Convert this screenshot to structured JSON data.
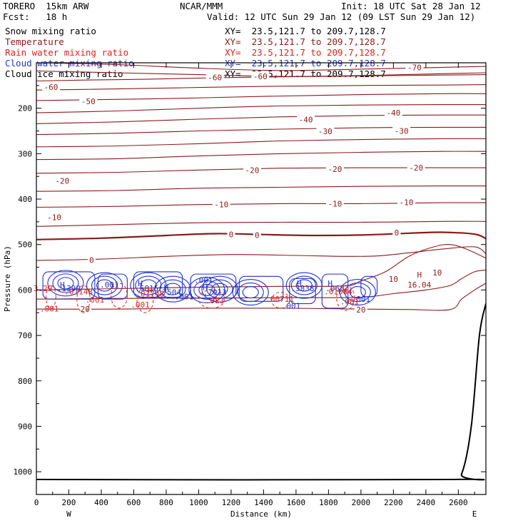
{
  "header": {
    "model": "TORERO  15km ARW",
    "center": "NCAR/MMM",
    "init": "Init: 18 UTC Sat 28 Jan 12",
    "fcst": "Fcst:   18 h",
    "valid": "Valid: 12 UTC Sun 29 Jan 12 (09 LST Sun 29 Jan 12)"
  },
  "fields": [
    {
      "name": "Snow mixing ratio",
      "xy": "XY=  23.5,121.7 to 209.7,128.7",
      "color": "#000000"
    },
    {
      "name": "Temperature",
      "xy": "XY=  23.5,121.7 to 209.7,128.7",
      "color": "#8b1a1a"
    },
    {
      "name": "Rain water mixing ratio",
      "xy": "XY=  23.5,121.7 to 209.7,128.7",
      "color": "#dd2222"
    },
    {
      "name": "Cloud water mixing ratio",
      "xy": "XY=  23.5,121.7 to 209.7,128.7",
      "color": "#2233cc"
    },
    {
      "name": "Cloud ice mixing ratio",
      "xy": "XY=  23.5,121.7 to 209.7,128.7",
      "color": "#000000"
    }
  ],
  "chart_data": {
    "type": "line",
    "xlabel": "Distance (km)",
    "ylabel": "Pressure (hPa)",
    "xlim": [
      0,
      2770
    ],
    "ylim": [
      1050,
      100
    ],
    "xticks": [
      0,
      200,
      400,
      600,
      800,
      1000,
      1200,
      1400,
      1600,
      1800,
      2000,
      2200,
      2400,
      2600
    ],
    "yticks": [
      200,
      300,
      400,
      500,
      600,
      700,
      800,
      900,
      1000
    ],
    "endpoint_labels": {
      "west": "W",
      "east": "E"
    },
    "temperature_isotherms": [
      {
        "level": -70,
        "points": [
          [
            0,
            100
          ],
          [
            500,
            104
          ],
          [
            1000,
            112
          ],
          [
            1500,
            117
          ],
          [
            2000,
            114
          ],
          [
            2500,
            110
          ],
          [
            2770,
            108
          ]
        ]
      },
      {
        "level": -65,
        "points": [
          [
            0,
            118
          ],
          [
            500,
            122
          ],
          [
            1000,
            126
          ],
          [
            1500,
            130
          ],
          [
            2000,
            128
          ],
          [
            2500,
            124
          ],
          [
            2770,
            122
          ]
        ]
      },
      {
        "level": -60,
        "points": [
          [
            0,
            140
          ],
          [
            300,
            138
          ],
          [
            700,
            136
          ],
          [
            1100,
            133
          ],
          [
            1500,
            131
          ],
          [
            2000,
            129
          ],
          [
            2500,
            127
          ],
          [
            2770,
            126
          ]
        ]
      },
      {
        "level": -55,
        "points": [
          [
            0,
            160
          ],
          [
            400,
            158
          ],
          [
            900,
            155
          ],
          [
            1400,
            152
          ],
          [
            2000,
            150
          ],
          [
            2500,
            149
          ],
          [
            2770,
            148
          ]
        ]
      },
      {
        "level": -50,
        "points": [
          [
            0,
            183
          ],
          [
            400,
            181
          ],
          [
            900,
            178
          ],
          [
            1400,
            174
          ],
          [
            2000,
            170
          ],
          [
            2500,
            168
          ],
          [
            2770,
            168
          ]
        ]
      },
      {
        "level": -45,
        "points": [
          [
            0,
            210
          ],
          [
            500,
            206
          ],
          [
            1000,
            200
          ],
          [
            1500,
            195
          ],
          [
            2000,
            193
          ],
          [
            2500,
            192
          ],
          [
            2770,
            192
          ]
        ]
      },
      {
        "level": -40,
        "points": [
          [
            0,
            234
          ],
          [
            500,
            230
          ],
          [
            1000,
            224
          ],
          [
            1500,
            219
          ],
          [
            2000,
            216
          ],
          [
            2500,
            215
          ],
          [
            2770,
            215
          ]
        ]
      },
      {
        "level": -35,
        "points": [
          [
            0,
            258
          ],
          [
            500,
            255
          ],
          [
            1000,
            250
          ],
          [
            1500,
            246
          ],
          [
            2000,
            243
          ],
          [
            2500,
            242
          ],
          [
            2770,
            242
          ]
        ]
      },
      {
        "level": -30,
        "points": [
          [
            0,
            285
          ],
          [
            500,
            283
          ],
          [
            1000,
            278
          ],
          [
            1500,
            272
          ],
          [
            2000,
            269
          ],
          [
            2500,
            267
          ],
          [
            2770,
            267
          ]
        ]
      },
      {
        "level": -25,
        "points": [
          [
            0,
            313
          ],
          [
            500,
            311
          ],
          [
            1000,
            305
          ],
          [
            1500,
            300
          ],
          [
            2000,
            297
          ],
          [
            2500,
            295
          ],
          [
            2770,
            295
          ]
        ]
      },
      {
        "level": -20,
        "points": [
          [
            0,
            343
          ],
          [
            500,
            341
          ],
          [
            1000,
            336
          ],
          [
            1500,
            332
          ],
          [
            2000,
            331
          ],
          [
            2500,
            331
          ],
          [
            2770,
            331
          ]
        ]
      },
      {
        "level": -15,
        "points": [
          [
            0,
            383
          ],
          [
            500,
            381
          ],
          [
            1000,
            376
          ],
          [
            1500,
            374
          ],
          [
            2000,
            372
          ],
          [
            2500,
            371
          ],
          [
            2770,
            371
          ]
        ]
      },
      {
        "level": -10,
        "points": [
          [
            0,
            418
          ],
          [
            500,
            416
          ],
          [
            1000,
            412
          ],
          [
            1500,
            410
          ],
          [
            2000,
            410
          ],
          [
            2500,
            408
          ],
          [
            2770,
            408
          ]
        ]
      },
      {
        "level": -5,
        "points": [
          [
            0,
            460
          ],
          [
            500,
            456
          ],
          [
            1000,
            452
          ],
          [
            1500,
            451
          ],
          [
            2000,
            451
          ],
          [
            2500,
            449
          ],
          [
            2770,
            449
          ]
        ]
      },
      {
        "level": 0,
        "points": [
          [
            0,
            489
          ],
          [
            400,
            486
          ],
          [
            800,
            480
          ],
          [
            1100,
            476
          ],
          [
            1400,
            478
          ],
          [
            1700,
            480
          ],
          [
            2000,
            479
          ],
          [
            2300,
            475
          ],
          [
            2500,
            473
          ],
          [
            2700,
            477
          ],
          [
            2770,
            487
          ]
        ]
      },
      {
        "level": 5,
        "points": [
          [
            0,
            535
          ],
          [
            400,
            532
          ],
          [
            800,
            526
          ],
          [
            1200,
            522
          ],
          [
            1600,
            524
          ],
          [
            1900,
            526
          ],
          [
            2100,
            525
          ],
          [
            2300,
            518
          ],
          [
            2500,
            510
          ],
          [
            2700,
            505
          ],
          [
            2770,
            520
          ]
        ]
      },
      {
        "level": 10,
        "points": [
          [
            0,
            600
          ],
          [
            500,
            597
          ],
          [
            1000,
            594
          ],
          [
            1500,
            592
          ],
          [
            1900,
            591
          ],
          [
            2000,
            580
          ],
          [
            2150,
            560
          ],
          [
            2300,
            525
          ],
          [
            2450,
            505
          ],
          [
            2550,
            500
          ],
          [
            2650,
            510
          ],
          [
            2770,
            530
          ]
        ]
      },
      {
        "level": 15,
        "points": [
          [
            0,
            620
          ],
          [
            800,
            618
          ],
          [
            1600,
            617
          ],
          [
            2000,
            616
          ],
          [
            2200,
            608
          ],
          [
            2400,
            600
          ],
          [
            2550,
            590
          ],
          [
            2620,
            575
          ],
          [
            2700,
            560
          ],
          [
            2770,
            556
          ]
        ]
      },
      {
        "level": 20,
        "points": [
          [
            0,
            642
          ],
          [
            500,
            642
          ],
          [
            1000,
            640
          ],
          [
            1500,
            640
          ],
          [
            2000,
            642
          ],
          [
            2300,
            643
          ],
          [
            2550,
            643
          ],
          [
            2620,
            620
          ],
          [
            2700,
            600
          ],
          [
            2770,
            585
          ]
        ]
      }
    ],
    "terrain_pressure": [
      [
        0,
        1017
      ],
      [
        2550,
        1017
      ],
      [
        2620,
        1005
      ],
      [
        2680,
        900
      ],
      [
        2730,
        700
      ],
      [
        2770,
        630
      ]
    ],
    "temperature_labels": [
      {
        "x": 2330,
        "y": 110,
        "text": "-70"
      },
      {
        "x": 1100,
        "y": 132,
        "text": "-60"
      },
      {
        "x": 1380,
        "y": 130,
        "text": "-60"
      },
      {
        "x": 90,
        "y": 153,
        "text": "-60"
      },
      {
        "x": 320,
        "y": 185,
        "text": "-50"
      },
      {
        "x": 1660,
        "y": 225,
        "text": "-40"
      },
      {
        "x": 2200,
        "y": 210,
        "text": "-40"
      },
      {
        "x": 1780,
        "y": 251,
        "text": "-30"
      },
      {
        "x": 2250,
        "y": 250,
        "text": "-30"
      },
      {
        "x": 160,
        "y": 360,
        "text": "-20"
      },
      {
        "x": 1330,
        "y": 336,
        "text": "-20"
      },
      {
        "x": 1840,
        "y": 334,
        "text": "-20"
      },
      {
        "x": 2340,
        "y": 331,
        "text": "-20"
      },
      {
        "x": 1140,
        "y": 412,
        "text": "-10"
      },
      {
        "x": 1840,
        "y": 410,
        "text": "-10"
      },
      {
        "x": 2280,
        "y": 407,
        "text": "-10"
      },
      {
        "x": 110,
        "y": 440,
        "text": "-10"
      },
      {
        "x": 340,
        "y": 534,
        "text": "0"
      },
      {
        "x": 1200,
        "y": 478,
        "text": "0"
      },
      {
        "x": 1360,
        "y": 479,
        "text": "0"
      },
      {
        "x": 2220,
        "y": 474,
        "text": "0"
      },
      {
        "x": 2470,
        "y": 562,
        "text": "10"
      },
      {
        "x": 2200,
        "y": 576,
        "text": "10"
      },
      {
        "x": 300,
        "y": 642,
        "text": "20"
      },
      {
        "x": 2000,
        "y": 643,
        "text": "20"
      }
    ],
    "temperature_max": {
      "x": 2360,
      "y": 588,
      "text": "H",
      "value": "16.04"
    },
    "cloud_water_labels": [
      {
        "x": 1030,
        "y": 578,
        "text": ".001"
      },
      {
        "x": 450,
        "y": 588,
        "text": ".001"
      },
      {
        "x": 910,
        "y": 614,
        "text": ".001"
      },
      {
        "x": 1570,
        "y": 635,
        "text": ".001"
      },
      {
        "x": 2000,
        "y": 620,
        "text": ".001"
      },
      {
        "x": 160,
        "y": 588,
        "text": "H"
      },
      {
        "x": 640,
        "y": 585,
        "text": "H"
      },
      {
        "x": 800,
        "y": 594,
        "text": "H"
      },
      {
        "x": 1040,
        "y": 594,
        "text": "H"
      },
      {
        "x": 1620,
        "y": 585,
        "text": "H"
      },
      {
        "x": 1810,
        "y": 585,
        "text": "H"
      },
      {
        "x": 200,
        "y": 596,
        "text": ".1399"
      },
      {
        "x": 680,
        "y": 596,
        "text": ".6815"
      },
      {
        "x": 820,
        "y": 605,
        "text": ".7504"
      },
      {
        "x": 1100,
        "y": 605,
        "text": ".7913"
      },
      {
        "x": 1640,
        "y": 596,
        "text": ".3838"
      },
      {
        "x": 1840,
        "y": 596,
        "text": ".063"
      }
    ],
    "rain_water_labels": [
      {
        "x": 80,
        "y": 641,
        "text": ".001"
      },
      {
        "x": 360,
        "y": 621,
        "text": ".001"
      },
      {
        "x": 640,
        "y": 632,
        "text": ".001"
      },
      {
        "x": 1100,
        "y": 623,
        "text": ".023"
      },
      {
        "x": 1500,
        "y": 620,
        "text": ".00711"
      },
      {
        "x": 1930,
        "y": 625,
        "text": ".001"
      },
      {
        "x": 40,
        "y": 596,
        "text": "3.29"
      },
      {
        "x": 260,
        "y": 603,
        "text": ".01148"
      },
      {
        "x": 700,
        "y": 608,
        "text": ".01748"
      },
      {
        "x": 1860,
        "y": 603,
        "text": ".01084"
      },
      {
        "x": 700,
        "y": 600,
        "text": "H"
      },
      {
        "x": 1100,
        "y": 620,
        "text": "H"
      },
      {
        "x": 1900,
        "y": 600,
        "text": "H"
      }
    ]
  }
}
